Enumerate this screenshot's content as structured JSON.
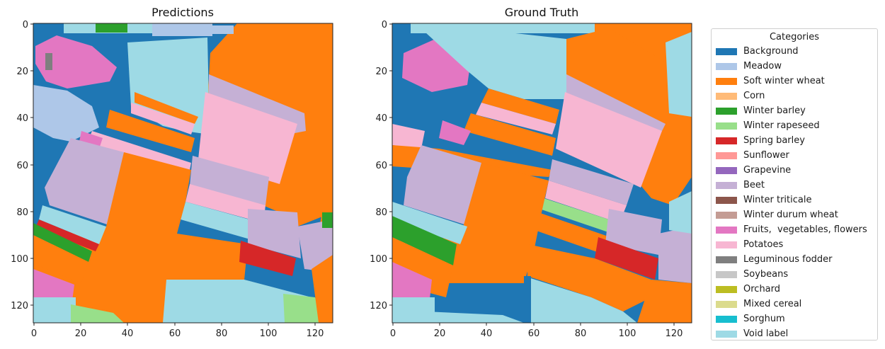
{
  "panels": [
    {
      "title": "Predictions"
    },
    {
      "title": "Ground Truth"
    }
  ],
  "axes": {
    "x_ticks": [
      "0",
      "20",
      "40",
      "60",
      "80",
      "100",
      "120"
    ],
    "y_ticks": [
      "0",
      "20",
      "40",
      "60",
      "80",
      "100",
      "120"
    ]
  },
  "legend": {
    "title": "Categories",
    "items": [
      {
        "label": "Background",
        "color": "#1f77b4"
      },
      {
        "label": "Meadow",
        "color": "#aec7e8"
      },
      {
        "label": "Soft winter wheat",
        "color": "#ff7f0e"
      },
      {
        "label": "Corn",
        "color": "#ffbb78"
      },
      {
        "label": "Winter barley",
        "color": "#2ca02c"
      },
      {
        "label": "Winter rapeseed",
        "color": "#98df8a"
      },
      {
        "label": "Spring barley",
        "color": "#d62728"
      },
      {
        "label": "Sunflower",
        "color": "#ff9896"
      },
      {
        "label": "Grapevine",
        "color": "#9467bd"
      },
      {
        "label": "Beet",
        "color": "#c5b0d5"
      },
      {
        "label": "Winter triticale",
        "color": "#8c564b"
      },
      {
        "label": "Winter durum wheat",
        "color": "#c49c94"
      },
      {
        "label": "Fruits,  vegetables, flowers",
        "color": "#e377c2"
      },
      {
        "label": "Potatoes",
        "color": "#f7b6d2"
      },
      {
        "label": "Leguminous fodder",
        "color": "#7f7f7f"
      },
      {
        "label": "Soybeans",
        "color": "#c7c7c7"
      },
      {
        "label": "Orchard",
        "color": "#bcbd22"
      },
      {
        "label": "Mixed cereal",
        "color": "#dbdb8d"
      },
      {
        "label": "Sorghum",
        "color": "#17becf"
      },
      {
        "label": "Void label",
        "color": "#9edae5"
      }
    ]
  }
}
